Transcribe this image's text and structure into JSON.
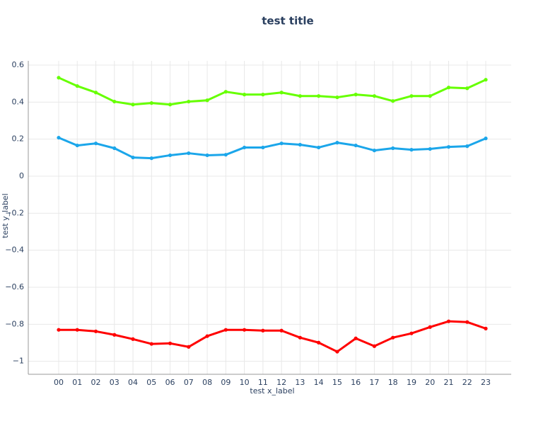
{
  "chart_data": {
    "type": "line",
    "title": "test title",
    "x_label": "test x_label",
    "y_label": "test y_label",
    "categories": [
      "00",
      "01",
      "02",
      "03",
      "04",
      "05",
      "06",
      "07",
      "08",
      "09",
      "10",
      "11",
      "12",
      "13",
      "14",
      "15",
      "16",
      "17",
      "18",
      "19",
      "20",
      "21",
      "22",
      "23"
    ],
    "series": [
      {
        "color": "#66ff00",
        "values": [
          0.532,
          0.487,
          0.452,
          0.403,
          0.387,
          0.395,
          0.387,
          0.403,
          0.41,
          0.456,
          0.441,
          0.441,
          0.452,
          0.433,
          0.433,
          0.426,
          0.441,
          0.433,
          0.406,
          0.433,
          0.433,
          0.479,
          0.475,
          0.521
        ]
      },
      {
        "color": "#1ba6ea",
        "values": [
          0.208,
          0.166,
          0.177,
          0.151,
          0.101,
          0.097,
          0.113,
          0.124,
          0.113,
          0.116,
          0.155,
          0.155,
          0.177,
          0.17,
          0.155,
          0.181,
          0.166,
          0.139,
          0.151,
          0.143,
          0.147,
          0.158,
          0.162,
          0.204
        ]
      },
      {
        "color": "#ff0000",
        "values": [
          -0.83,
          -0.83,
          -0.838,
          -0.857,
          -0.88,
          -0.906,
          -0.903,
          -0.922,
          -0.864,
          -0.83,
          -0.83,
          -0.834,
          -0.834,
          -0.872,
          -0.899,
          -0.948,
          -0.876,
          -0.918,
          -0.872,
          -0.849,
          -0.815,
          -0.784,
          -0.788,
          -0.823
        ]
      }
    ],
    "ylim": [
      -1.07,
      0.623
    ],
    "yticks": [
      0.6,
      0.4,
      0.2,
      0,
      {
        "value": -0.2,
        "label": "−0.2"
      },
      {
        "value": -0.4,
        "label": "−0.4"
      },
      {
        "value": -0.6,
        "label": "−0.6"
      },
      {
        "value": -0.8,
        "label": "−0.8"
      },
      {
        "value": -1,
        "label": "−1"
      }
    ],
    "grid": true
  }
}
